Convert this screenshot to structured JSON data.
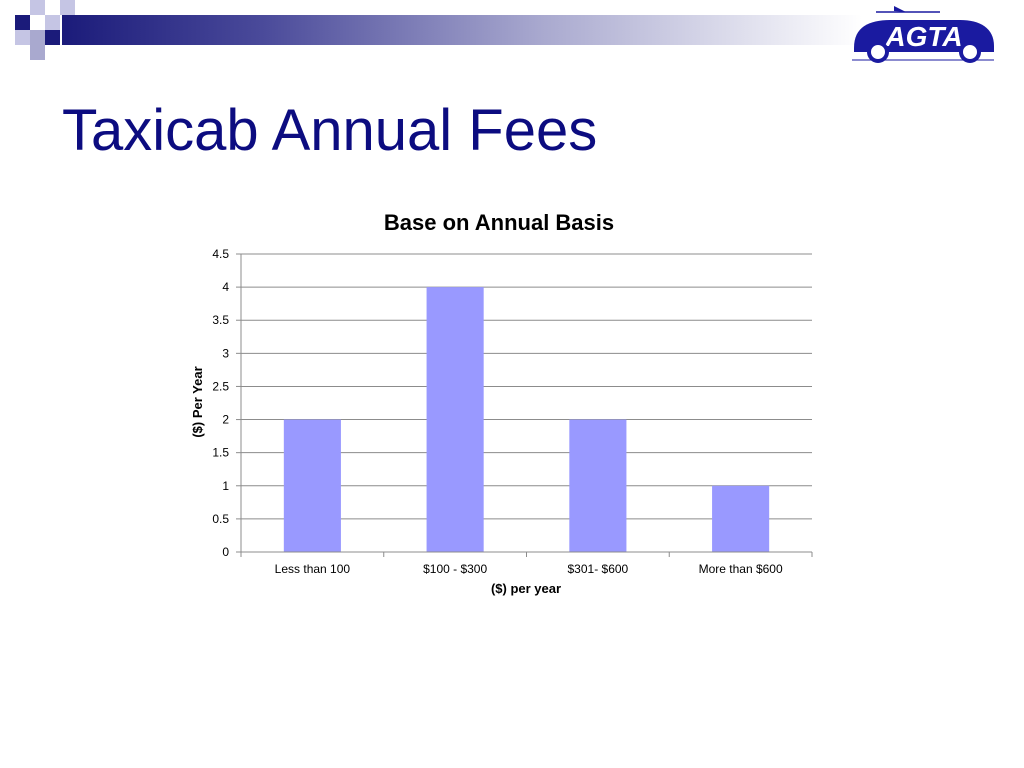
{
  "slide": {
    "title": "Taxicab Annual Fees",
    "accent_color": "#0c0c80",
    "logo": {
      "text": "AGTA",
      "icon": "car-logo-icon",
      "color": "#1a1aa0"
    }
  },
  "chart_data": {
    "type": "bar",
    "title": "Base on Annual Basis",
    "xlabel": "($) per year",
    "ylabel": "($) Per Year",
    "categories": [
      "Less than 100",
      "$100 - $300",
      "$301- $600",
      "More than $600"
    ],
    "values": [
      2,
      4,
      2,
      1
    ],
    "ylim": [
      0,
      4.5
    ],
    "yticks": [
      "0",
      "0.5",
      "1",
      "1.5",
      "2",
      "2.5",
      "3",
      "3.5",
      "4",
      "4.5"
    ],
    "bar_color": "#9999ff",
    "grid": true,
    "legend": "none"
  }
}
